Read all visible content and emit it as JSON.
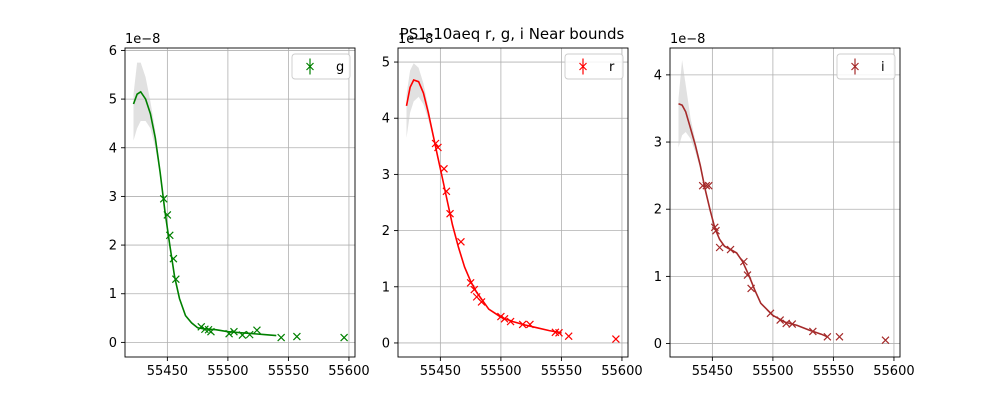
{
  "title": "PS1-10aeq  r, g, i Near bounds",
  "chart_data": [
    {
      "type": "scatter",
      "band": "g",
      "color": "#008000",
      "legend_label": "g",
      "legend_position": "upper right",
      "grid": true,
      "xlim": [
        55415,
        55605
      ],
      "ylim": [
        -0.3,
        6.05
      ],
      "xticks": [
        55450,
        55500,
        55550,
        55600
      ],
      "yticks": [
        0,
        1,
        2,
        3,
        4,
        5,
        6
      ],
      "y_offset_label": "1e−8",
      "points": {
        "x": [
          55447,
          55450,
          55452,
          55455,
          55457,
          55478,
          55481,
          55484,
          55486,
          55501,
          55505,
          55512,
          55518,
          55524,
          55544,
          55557,
          55596
        ],
        "y": [
          2.95,
          2.62,
          2.2,
          1.72,
          1.3,
          0.32,
          0.27,
          0.26,
          0.22,
          0.18,
          0.22,
          0.15,
          0.16,
          0.25,
          0.1,
          0.12,
          0.1
        ]
      },
      "fit": {
        "x": [
          55422,
          55425,
          55428,
          55432,
          55436,
          55440,
          55444,
          55448,
          55452,
          55456,
          55460,
          55465,
          55470,
          55475,
          55480,
          55490,
          55500,
          55510,
          55520,
          55530,
          55540
        ],
        "y": [
          4.9,
          5.1,
          5.15,
          5.0,
          4.7,
          4.2,
          3.5,
          2.7,
          2.0,
          1.35,
          0.9,
          0.55,
          0.4,
          0.3,
          0.28,
          0.26,
          0.22,
          0.2,
          0.18,
          0.16,
          0.14
        ]
      },
      "band_region": {
        "x": [
          55422,
          55425,
          55428,
          55432,
          55436,
          55440,
          55444
        ],
        "upper": [
          5.1,
          5.75,
          5.75,
          5.45,
          4.95,
          4.35,
          3.55
        ],
        "lower": [
          4.15,
          4.4,
          4.55,
          4.55,
          4.4,
          4.0,
          3.45
        ]
      }
    },
    {
      "type": "scatter",
      "band": "r",
      "color": "#ff0000",
      "legend_label": "r",
      "legend_position": "upper right",
      "grid": true,
      "xlim": [
        55415,
        55605
      ],
      "ylim": [
        -0.25,
        5.25
      ],
      "xticks": [
        55450,
        55500,
        55550,
        55600
      ],
      "yticks": [
        0,
        1,
        2,
        3,
        4,
        5
      ],
      "y_offset_label": "1e−8",
      "points": {
        "x": [
          55446,
          55448,
          55453,
          55455,
          55458,
          55467,
          55475,
          55478,
          55480,
          55484,
          55500,
          55503,
          55508,
          55518,
          55524,
          55545,
          55548,
          55556,
          55595
        ],
        "y": [
          3.55,
          3.48,
          3.1,
          2.7,
          2.3,
          1.8,
          1.07,
          0.95,
          0.82,
          0.73,
          0.47,
          0.43,
          0.38,
          0.33,
          0.33,
          0.19,
          0.18,
          0.12,
          0.07
        ]
      },
      "fit": {
        "x": [
          55422,
          55425,
          55428,
          55432,
          55436,
          55440,
          55444,
          55448,
          55452,
          55456,
          55460,
          55465,
          55470,
          55475,
          55480,
          55490,
          55500,
          55510,
          55520,
          55530,
          55540,
          55550
        ],
        "y": [
          4.22,
          4.55,
          4.68,
          4.65,
          4.45,
          4.1,
          3.7,
          3.3,
          2.9,
          2.5,
          2.1,
          1.7,
          1.35,
          1.1,
          0.9,
          0.6,
          0.46,
          0.38,
          0.32,
          0.27,
          0.22,
          0.18
        ]
      },
      "band_region": {
        "x": [
          55422,
          55425,
          55428,
          55432,
          55436,
          55440,
          55444
        ],
        "upper": [
          4.42,
          4.85,
          4.98,
          4.9,
          4.62,
          4.2,
          3.72
        ],
        "lower": [
          3.65,
          4.1,
          4.3,
          4.38,
          4.25,
          3.98,
          3.65
        ]
      }
    },
    {
      "type": "scatter",
      "band": "i",
      "color": "#a52a2a",
      "legend_label": "i",
      "legend_position": "upper right",
      "grid": true,
      "xlim": [
        55415,
        55605
      ],
      "ylim": [
        -0.2,
        4.4
      ],
      "xticks": [
        55450,
        55500,
        55550,
        55600
      ],
      "yticks": [
        0,
        1,
        2,
        3,
        4
      ],
      "y_offset_label": "1e−8",
      "points": {
        "x": [
          55442,
          55445,
          55447,
          55452,
          55453,
          55456,
          55465,
          55476,
          55479,
          55482,
          55498,
          55506,
          55511,
          55516,
          55533,
          55545,
          55555,
          55593
        ],
        "y": [
          2.35,
          2.35,
          2.35,
          1.73,
          1.68,
          1.43,
          1.4,
          1.22,
          1.02,
          0.82,
          0.45,
          0.35,
          0.3,
          0.29,
          0.18,
          0.1,
          0.1,
          0.05
        ]
      },
      "fit": {
        "x": [
          55422,
          55425,
          55428,
          55432,
          55436,
          55440,
          55444,
          55448,
          55452,
          55456,
          55460,
          55465,
          55470,
          55475,
          55480,
          55485,
          55490,
          55500,
          55510,
          55520,
          55530,
          55540,
          55545
        ],
        "y": [
          3.57,
          3.55,
          3.45,
          3.2,
          2.95,
          2.65,
          2.3,
          2.0,
          1.72,
          1.55,
          1.45,
          1.4,
          1.35,
          1.22,
          1.02,
          0.8,
          0.6,
          0.42,
          0.32,
          0.27,
          0.2,
          0.14,
          0.1
        ]
      },
      "band_region": {
        "x": [
          55422,
          55425,
          55428,
          55432,
          55436,
          55440,
          55444
        ],
        "upper": [
          3.65,
          4.22,
          3.85,
          3.35,
          3.02,
          2.7,
          2.32
        ],
        "lower": [
          2.92,
          3.1,
          3.15,
          3.05,
          2.85,
          2.6,
          2.28
        ]
      }
    }
  ]
}
